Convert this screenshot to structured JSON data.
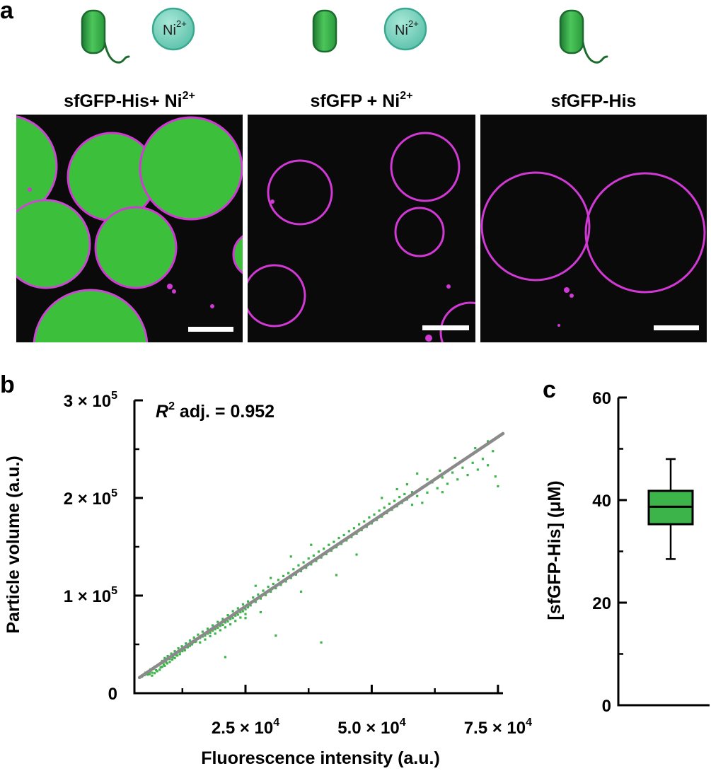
{
  "panel_a": {
    "label": "a",
    "ion_label": "Ni",
    "ion_charge": "2+",
    "panels": [
      {
        "title_main": "sfGFP-His+ Ni",
        "title_sup": "2+",
        "has_his_tag": true,
        "has_ion": true,
        "green_fill": true
      },
      {
        "title_main": "sfGFP + Ni",
        "title_sup": "2+",
        "has_his_tag": false,
        "has_ion": true,
        "green_fill": false
      },
      {
        "title_main": "sfGFP-His",
        "title_sup": "",
        "has_his_tag": true,
        "has_ion": false,
        "green_fill": false
      }
    ],
    "colors": {
      "protein": "#3cb44a",
      "protein_dark": "#1f7a34",
      "ion": "#7dd3c0",
      "membrane": "#d02ad2",
      "background": "#0a0a0a",
      "scale_bar": "#ffffff"
    }
  },
  "chart_data": [
    {
      "panel": "b",
      "type": "scatter",
      "annotation_italic": "R",
      "annotation_sup": "2",
      "annotation_rest": " adj. = 0.952",
      "xlabel": "Fluorescence intensity (a.u.)",
      "ylabel": "Particle volume (a.u.)",
      "xlim": [
        3000,
        76000
      ],
      "ylim": [
        0,
        300000
      ],
      "xticks": [
        {
          "value": 25000,
          "mant": "2.5 × 10",
          "exp": "4"
        },
        {
          "value": 50000,
          "mant": "5.0 × 10",
          "exp": "4"
        },
        {
          "value": 75000,
          "mant": "7.5 × 10",
          "exp": "4"
        }
      ],
      "yticks": [
        {
          "value": 0,
          "mant": "0",
          "exp": ""
        },
        {
          "value": 100000,
          "mant": "1 × 10",
          "exp": "5"
        },
        {
          "value": 200000,
          "mant": "2 × 10",
          "exp": "5"
        },
        {
          "value": 300000,
          "mant": "3 × 10",
          "exp": "5"
        }
      ],
      "fit": {
        "x": [
          4000,
          76000
        ],
        "y": [
          16000,
          266000
        ]
      },
      "point_color": "#3cb44a",
      "fit_color": "#8a8a8a",
      "points": [
        [
          4500,
          17000
        ],
        [
          5000,
          18500
        ],
        [
          5200,
          21000
        ],
        [
          5600,
          19000
        ],
        [
          6000,
          22000
        ],
        [
          6200,
          24500
        ],
        [
          6500,
          21000
        ],
        [
          6800,
          25000
        ],
        [
          7000,
          27000
        ],
        [
          7300,
          23500
        ],
        [
          7600,
          28500
        ],
        [
          8000,
          30000
        ],
        [
          8200,
          26500
        ],
        [
          8500,
          33000
        ],
        [
          8800,
          29500
        ],
        [
          9000,
          36000
        ],
        [
          9300,
          31500
        ],
        [
          9600,
          38000
        ],
        [
          10000,
          35000
        ],
        [
          10300,
          40500
        ],
        [
          10600,
          37000
        ],
        [
          11000,
          43000
        ],
        [
          11300,
          39000
        ],
        [
          11700,
          46000
        ],
        [
          12000,
          42500
        ],
        [
          12400,
          48000
        ],
        [
          12800,
          45000
        ],
        [
          13200,
          51000
        ],
        [
          13600,
          47500
        ],
        [
          14000,
          54000
        ],
        [
          14400,
          50000
        ],
        [
          14800,
          57000
        ],
        [
          15200,
          53000
        ],
        [
          15600,
          60000
        ],
        [
          16000,
          56500
        ],
        [
          16500,
          63000
        ],
        [
          17000,
          59000
        ],
        [
          17500,
          66000
        ],
        [
          18000,
          62000
        ],
        [
          18500,
          69500
        ],
        [
          19000,
          65500
        ],
        [
          19500,
          73000
        ],
        [
          20000,
          69000
        ],
        [
          20500,
          76000
        ],
        [
          21000,
          72500
        ],
        [
          21500,
          80000
        ],
        [
          22000,
          76000
        ],
        [
          22500,
          84000
        ],
        [
          23000,
          79500
        ],
        [
          23500,
          87000
        ],
        [
          24000,
          83000
        ],
        [
          24500,
          91000
        ],
        [
          25000,
          86000
        ],
        [
          25500,
          94000
        ],
        [
          26000,
          90000
        ],
        [
          26500,
          98000
        ],
        [
          27000,
          93500
        ],
        [
          27500,
          101000
        ],
        [
          28000,
          97000
        ],
        [
          28500,
          105000
        ],
        [
          29000,
          100500
        ],
        [
          29500,
          109000
        ],
        [
          30000,
          104000
        ],
        [
          30500,
          112000
        ],
        [
          31000,
          107500
        ],
        [
          31500,
          116000
        ],
        [
          32000,
          111000
        ],
        [
          32500,
          120000
        ],
        [
          33000,
          114500
        ],
        [
          33500,
          123000
        ],
        [
          34000,
          118000
        ],
        [
          34500,
          127000
        ],
        [
          35000,
          121500
        ],
        [
          35500,
          131000
        ],
        [
          36000,
          125000
        ],
        [
          36500,
          134000
        ],
        [
          37000,
          128500
        ],
        [
          37500,
          138000
        ],
        [
          38000,
          132000
        ],
        [
          38500,
          141000
        ],
        [
          39000,
          135500
        ],
        [
          39500,
          145000
        ],
        [
          40000,
          139000
        ],
        [
          40500,
          148000
        ],
        [
          41000,
          142500
        ],
        [
          41500,
          152000
        ],
        [
          42000,
          146000
        ],
        [
          42500,
          155000
        ],
        [
          43000,
          149500
        ],
        [
          43500,
          159000
        ],
        [
          44000,
          153000
        ],
        [
          44500,
          162000
        ],
        [
          45000,
          156500
        ],
        [
          45500,
          166000
        ],
        [
          46000,
          160000
        ],
        [
          46500,
          169000
        ],
        [
          47000,
          163500
        ],
        [
          47500,
          173000
        ],
        [
          48000,
          167000
        ],
        [
          48500,
          176000
        ],
        [
          49000,
          170500
        ],
        [
          49500,
          180000
        ],
        [
          50000,
          174000
        ],
        [
          50500,
          183000
        ],
        [
          51000,
          177500
        ],
        [
          51500,
          187000
        ],
        [
          52000,
          181000
        ],
        [
          52500,
          190000
        ],
        [
          53000,
          184500
        ],
        [
          53500,
          194000
        ],
        [
          54000,
          188000
        ],
        [
          54500,
          197000
        ],
        [
          55000,
          191500
        ],
        [
          55500,
          201000
        ],
        [
          56000,
          195000
        ],
        [
          56500,
          204000
        ],
        [
          57000,
          198500
        ],
        [
          58000,
          206000
        ],
        [
          59000,
          202000
        ],
        [
          60000,
          211000
        ],
        [
          61000,
          205500
        ],
        [
          62000,
          216000
        ],
        [
          63000,
          210000
        ],
        [
          64000,
          221000
        ],
        [
          65000,
          214500
        ],
        [
          66000,
          226000
        ],
        [
          67000,
          219000
        ],
        [
          68000,
          231000
        ],
        [
          69000,
          223500
        ],
        [
          70000,
          236000
        ],
        [
          71000,
          229000
        ],
        [
          72000,
          240000
        ],
        [
          73000,
          233500
        ],
        [
          74000,
          248000
        ],
        [
          75000,
          212000
        ],
        [
          74500,
          222000
        ],
        [
          58000,
          193000
        ],
        [
          57000,
          214000
        ],
        [
          61000,
          219000
        ],
        [
          63500,
          228000
        ],
        [
          70500,
          251000
        ],
        [
          73000,
          258000
        ],
        [
          59000,
          225000
        ],
        [
          66500,
          241000
        ],
        [
          36000,
          104000
        ],
        [
          31000,
          59000
        ],
        [
          40000,
          52000
        ],
        [
          21000,
          37000
        ],
        [
          43000,
          121000
        ],
        [
          47000,
          142000
        ],
        [
          38000,
          152000
        ],
        [
          52000,
          200000
        ],
        [
          55000,
          209000
        ],
        [
          60000,
          195000
        ],
        [
          64000,
          206000
        ],
        [
          27000,
          110000
        ],
        [
          30000,
          118000
        ],
        [
          34000,
          140000
        ],
        [
          28000,
          83000
        ],
        [
          25000,
          77000
        ],
        [
          6000,
          19500
        ],
        [
          6500,
          18000
        ],
        [
          7000,
          20500
        ],
        [
          7500,
          22500
        ],
        [
          8000,
          24000
        ],
        [
          8500,
          27000
        ],
        [
          9000,
          28000
        ],
        [
          9500,
          30500
        ],
        [
          10000,
          32000
        ],
        [
          10500,
          34500
        ],
        [
          11000,
          36000
        ],
        [
          11500,
          38500
        ],
        [
          12000,
          40000
        ],
        [
          12500,
          43000
        ],
        [
          13000,
          44000
        ],
        [
          13500,
          47000
        ],
        [
          14000,
          48500
        ],
        [
          14500,
          51500
        ],
        [
          15000,
          52500
        ],
        [
          15500,
          55500
        ],
        [
          16000,
          52000
        ],
        [
          16500,
          58000
        ],
        [
          17000,
          55000
        ],
        [
          17500,
          61000
        ],
        [
          18000,
          58500
        ],
        [
          18500,
          64000
        ],
        [
          19000,
          61000
        ],
        [
          19500,
          67000
        ],
        [
          20000,
          64500
        ],
        [
          20500,
          70000
        ],
        [
          21000,
          67500
        ],
        [
          21500,
          73500
        ],
        [
          22000,
          70500
        ],
        [
          22500,
          77000
        ],
        [
          23000,
          74000
        ],
        [
          23500,
          80500
        ],
        [
          24000,
          77500
        ],
        [
          24500,
          84000
        ],
        [
          25000,
          81000
        ],
        [
          25500,
          88000
        ]
      ]
    },
    {
      "panel": "c",
      "type": "box",
      "ylabel": "[sfGFP-His] (μM)",
      "ylim": [
        0,
        60
      ],
      "yticks": [
        0,
        20,
        40,
        60
      ],
      "box": {
        "min": 28.5,
        "q1": 35.3,
        "median": 38.7,
        "q3": 41.8,
        "max": 48.0
      },
      "box_color": "#3cb44a"
    }
  ]
}
